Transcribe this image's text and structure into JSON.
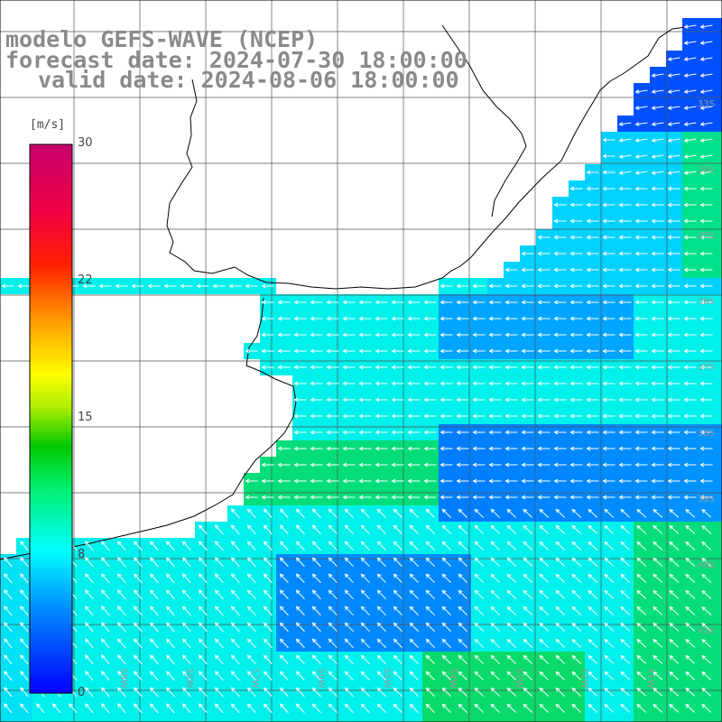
{
  "title": {
    "model": "modelo GEFS-WAVE (NCEP)",
    "forecast": "forecast date: 2024-07-30 18:00:00",
    "valid": "valid date: 2024-08-06 18:00:00"
  },
  "colorbar": {
    "unit": "[m/s]",
    "ticks": [
      "30",
      "22",
      "15",
      "8",
      "0"
    ],
    "range": [
      0,
      30
    ],
    "colors": [
      "#0000ff",
      "#00aaff",
      "#00ffff",
      "#00dd44",
      "#00c800",
      "#aadd00",
      "#ffff00",
      "#ffaa00",
      "#ff6600",
      "#ff0000",
      "#ee0040",
      "#cc0066"
    ]
  },
  "lat_labels": [
    "33S",
    "34S",
    "35S",
    "36S",
    "37S",
    "38S",
    "39S",
    "40S",
    "41S"
  ],
  "lon_labels": [
    "61W",
    "60W",
    "59W",
    "58W",
    "57W",
    "56W",
    "55W",
    "54W",
    "53W",
    "52W",
    "51W"
  ],
  "field": {
    "units": "m/s",
    "palette_used": [
      "#00aaff",
      "#1e90ff",
      "#0060ff",
      "#00ccff",
      "#00e5e5",
      "#00dd88",
      "#11dd44"
    ]
  }
}
